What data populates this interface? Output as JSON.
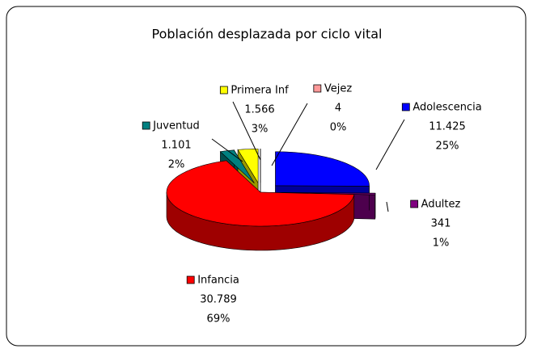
{
  "chart_data": {
    "type": "pie3d",
    "title": "Población desplazada por ciclo vital",
    "categories": [
      "Adolescencia",
      "Adultez",
      "Infancia",
      "Juventud",
      "Primera Inf",
      "Vejez"
    ],
    "values": [
      11425,
      341,
      30789,
      1101,
      1566,
      4
    ],
    "value_labels": [
      "11.425",
      "341",
      "30.789",
      "1.101",
      "1.566",
      "4"
    ],
    "percent_labels": [
      "25%",
      "1%",
      "69%",
      "2%",
      "3%",
      "0%"
    ],
    "colors": [
      "#0000ff",
      "#800080",
      "#ff0000",
      "#008080",
      "#ffff00",
      "#ff9999"
    ]
  }
}
